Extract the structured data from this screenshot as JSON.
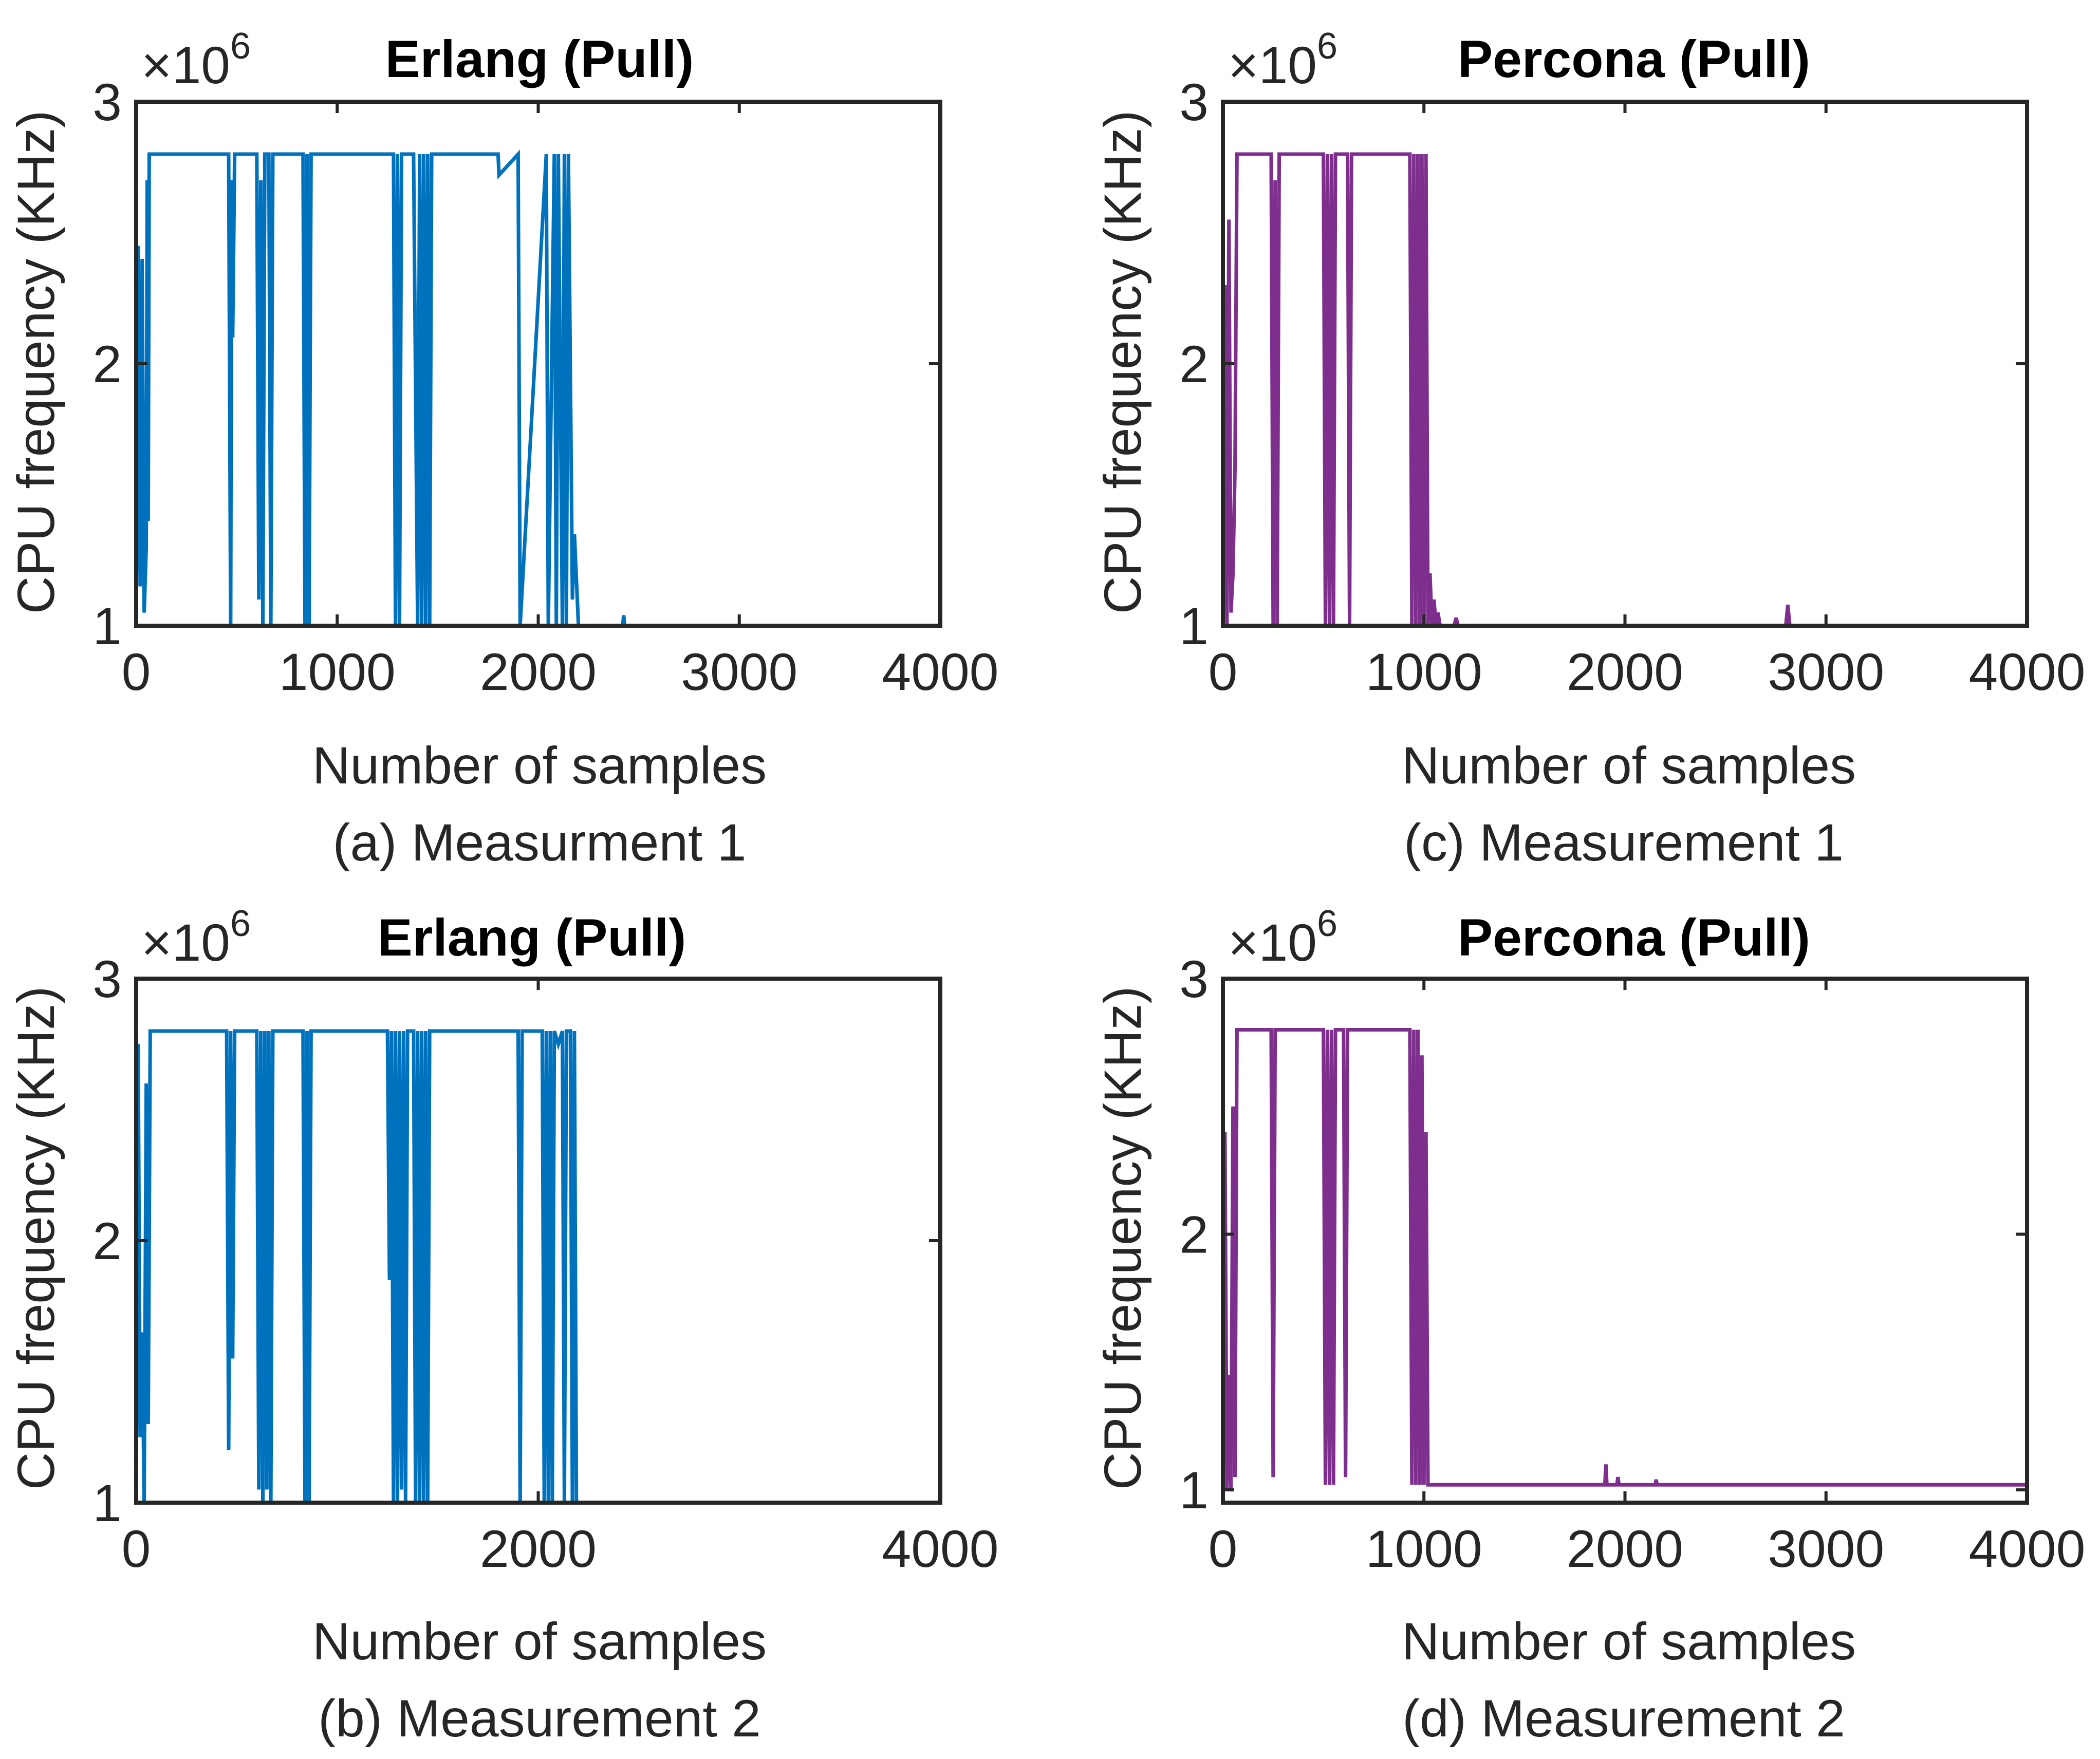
{
  "chart_data": [
    {
      "id": "a",
      "type": "line",
      "title": "Erlang (Pull)",
      "xlabel": "Number of samples",
      "ylabel": "CPU frequency (KHz)",
      "caption": "(a) Measurment 1",
      "y_multiplier": "×10",
      "y_multiplier_exp": "6",
      "xlim": [
        0,
        4000
      ],
      "ylim": [
        1,
        3
      ],
      "xticks": [
        0,
        1000,
        2000,
        3000,
        4000
      ],
      "xtick_labels": [
        "0",
        "1000",
        "2000",
        "3000",
        "4000"
      ],
      "yticks": [
        1,
        2,
        3
      ],
      "ytick_labels": [
        "1",
        "2",
        "3"
      ],
      "color": "#0072BD",
      "series": [
        {
          "name": "Erlang (Pull) - Measurement 1",
          "x": [
            0,
            10,
            20,
            30,
            40,
            50,
            55,
            60,
            65,
            70,
            80,
            90,
            100,
            460,
            470,
            475,
            480,
            490,
            500,
            600,
            610,
            620,
            630,
            640,
            660,
            670,
            680,
            690,
            700,
            830,
            840,
            850,
            860,
            870,
            1280,
            1290,
            1300,
            1310,
            1320,
            1380,
            1400,
            1410,
            1420,
            1430,
            1440,
            1450,
            1460,
            1470,
            1800,
            1805,
            1900,
            1910,
            2040,
            2050,
            2080,
            2090,
            2100,
            2120,
            2130,
            2140,
            2150,
            2170,
            2180,
            2200,
            2420,
            2425,
            2430,
            4000
          ],
          "y": [
            1.0,
            2.45,
            1.15,
            2.4,
            1.05,
            1.3,
            2.7,
            1.4,
            2.8,
            2.8,
            2.8,
            2.8,
            2.8,
            2.8,
            1.0,
            2.7,
            2.1,
            2.8,
            2.8,
            2.8,
            1.1,
            2.7,
            1.0,
            2.8,
            2.8,
            1.0,
            2.8,
            2.8,
            2.8,
            2.8,
            1.0,
            2.8,
            1.0,
            2.8,
            2.8,
            1.0,
            2.8,
            1.0,
            2.8,
            2.8,
            1.0,
            2.8,
            1.0,
            2.8,
            1.0,
            2.8,
            1.0,
            2.8,
            2.8,
            2.72,
            2.8,
            1.0,
            2.8,
            1.0,
            2.8,
            1.0,
            2.8,
            1.0,
            2.8,
            1.0,
            2.8,
            1.1,
            1.35,
            1.0,
            1.0,
            1.04,
            1.0,
            1.0
          ]
        }
      ]
    },
    {
      "id": "b",
      "type": "line",
      "title": "Erlang (Pull)",
      "xlabel": "Number of samples",
      "ylabel": "CPU frequency (KHz)",
      "caption": "(b) Measurement 2",
      "y_multiplier": "×10",
      "y_multiplier_exp": "6",
      "xlim": [
        0,
        4000
      ],
      "ylim": [
        1,
        3
      ],
      "xticks": [
        0,
        2000,
        4000
      ],
      "xtick_labels": [
        "0",
        "2000",
        "4000"
      ],
      "yticks": [
        1,
        2,
        3
      ],
      "ytick_labels": [
        "1",
        "2",
        "3"
      ],
      "color": "#0072BD",
      "series": [
        {
          "name": "Erlang (Pull) - Measurement 2",
          "x": [
            0,
            10,
            20,
            30,
            40,
            50,
            60,
            70,
            80,
            90,
            100,
            450,
            460,
            470,
            480,
            490,
            600,
            610,
            620,
            630,
            640,
            650,
            660,
            670,
            680,
            690,
            700,
            830,
            840,
            850,
            860,
            870,
            1250,
            1260,
            1270,
            1280,
            1290,
            1300,
            1310,
            1320,
            1330,
            1340,
            1350,
            1380,
            1390,
            1400,
            1410,
            1420,
            1430,
            1440,
            1450,
            1460,
            1470,
            1900,
            1910,
            1920,
            2020,
            2030,
            2040,
            2050,
            2060,
            2070,
            2080,
            2100,
            2120,
            2130,
            2140,
            2160,
            2170,
            2180,
            2190,
            2200,
            4000
          ],
          "y": [
            1.0,
            2.75,
            1.25,
            1.65,
            1.0,
            2.6,
            1.3,
            2.8,
            2.8,
            2.8,
            2.8,
            2.8,
            1.2,
            2.8,
            1.55,
            2.8,
            2.8,
            1.05,
            2.8,
            1.0,
            2.8,
            1.05,
            2.8,
            1.0,
            2.8,
            2.8,
            2.8,
            2.8,
            1.0,
            2.8,
            1.0,
            2.8,
            2.8,
            1.85,
            2.8,
            1.0,
            2.8,
            1.0,
            2.8,
            1.05,
            2.8,
            1.0,
            2.8,
            2.8,
            1.0,
            2.8,
            1.0,
            2.8,
            1.0,
            2.8,
            1.0,
            2.8,
            2.8,
            2.8,
            1.0,
            2.8,
            2.8,
            1.0,
            2.8,
            1.0,
            2.8,
            1.0,
            2.8,
            2.75,
            2.8,
            1.0,
            2.8,
            2.8,
            1.0,
            2.8,
            1.0,
            1.0,
            1.0
          ]
        }
      ]
    },
    {
      "id": "c",
      "type": "line",
      "title": "Percona (Pull)",
      "xlabel": "Number of samples",
      "ylabel": "CPU frequency (KHz)",
      "caption": "(c) Measurement 1",
      "y_multiplier": "×10",
      "y_multiplier_exp": "6",
      "xlim": [
        0,
        4000
      ],
      "ylim": [
        1,
        3
      ],
      "xticks": [
        0,
        1000,
        2000,
        3000,
        4000
      ],
      "xtick_labels": [
        "0",
        "1000",
        "2000",
        "3000",
        "4000"
      ],
      "yticks": [
        1,
        2,
        3
      ],
      "ytick_labels": [
        "1",
        "2",
        "3"
      ],
      "color": "#7E2F8E",
      "series": [
        {
          "name": "Percona (Pull) - Measurement 1",
          "x": [
            0,
            10,
            20,
            30,
            40,
            50,
            60,
            70,
            80,
            90,
            100,
            240,
            250,
            260,
            270,
            280,
            500,
            510,
            520,
            530,
            540,
            550,
            560,
            620,
            630,
            640,
            650,
            930,
            940,
            950,
            960,
            970,
            980,
            990,
            1000,
            1010,
            1020,
            1030,
            1040,
            1050,
            1060,
            1070,
            1080,
            1150,
            1160,
            1170,
            2800,
            2810,
            2820,
            4000
          ],
          "y": [
            1.0,
            2.3,
            1.0,
            2.55,
            1.05,
            1.2,
            1.6,
            2.8,
            2.8,
            2.8,
            2.8,
            2.8,
            1.0,
            2.7,
            1.0,
            2.8,
            2.8,
            1.0,
            2.8,
            1.0,
            2.8,
            1.0,
            2.8,
            2.8,
            1.0,
            2.8,
            2.8,
            2.8,
            1.0,
            2.8,
            1.0,
            2.8,
            1.0,
            2.8,
            1.0,
            2.8,
            1.0,
            1.2,
            1.0,
            1.1,
            1.0,
            1.05,
            1.0,
            1.0,
            1.03,
            1.0,
            1.0,
            1.08,
            1.0,
            1.0
          ]
        }
      ]
    },
    {
      "id": "d",
      "type": "line",
      "title": "Percona (Pull)",
      "xlabel": "Number of samples",
      "ylabel": "CPU frequency (KHz)",
      "caption": "(d) Measurement 2",
      "y_multiplier": "×10",
      "y_multiplier_exp": "6",
      "xlim": [
        0,
        4000
      ],
      "ylim": [
        0.95,
        3
      ],
      "xticks": [
        0,
        1000,
        2000,
        3000,
        4000
      ],
      "xtick_labels": [
        "0",
        "1000",
        "2000",
        "3000",
        "4000"
      ],
      "yticks": [
        1,
        2,
        3
      ],
      "ytick_labels": [
        "1",
        "2",
        "3"
      ],
      "color": "#7E2F8E",
      "series": [
        {
          "name": "Percona (Pull) - Measurement 2",
          "x": [
            0,
            10,
            20,
            30,
            40,
            50,
            60,
            70,
            80,
            90,
            100,
            240,
            250,
            260,
            270,
            500,
            510,
            520,
            530,
            540,
            550,
            560,
            600,
            610,
            620,
            930,
            940,
            950,
            960,
            970,
            980,
            990,
            1000,
            1010,
            1020,
            1030,
            1040,
            1900,
            1905,
            1910,
            1960,
            1965,
            1970,
            2150,
            2155,
            2160,
            4000
          ],
          "y": [
            1.0,
            2.4,
            1.0,
            1.45,
            1.0,
            2.5,
            1.05,
            2.8,
            2.8,
            2.8,
            2.8,
            2.8,
            1.05,
            2.8,
            2.8,
            2.8,
            1.02,
            2.8,
            1.02,
            2.8,
            1.02,
            2.8,
            2.8,
            1.05,
            2.8,
            2.8,
            1.02,
            2.8,
            1.02,
            2.8,
            1.02,
            2.7,
            1.02,
            2.4,
            1.02,
            1.02,
            1.02,
            1.02,
            1.1,
            1.02,
            1.02,
            1.05,
            1.02,
            1.02,
            1.04,
            1.02,
            1.02
          ]
        }
      ]
    }
  ]
}
